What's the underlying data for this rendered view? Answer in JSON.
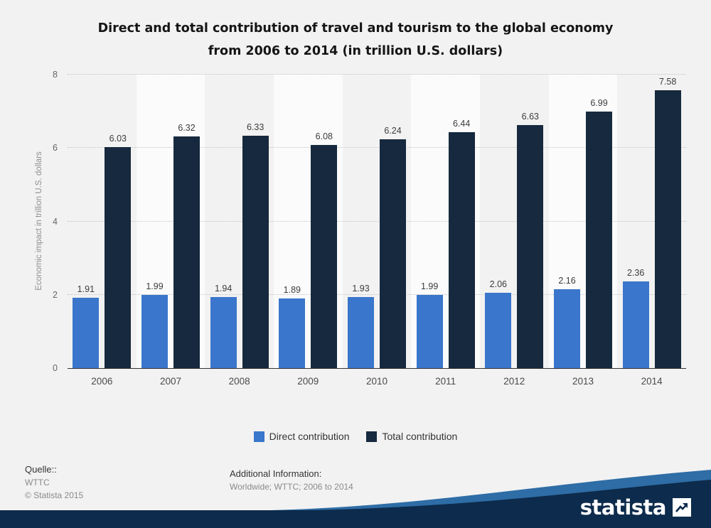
{
  "title": {
    "line1": "Direct and total contribution of travel and tourism to the global economy",
    "line2": "from 2006 to 2014 (in trillion U.S. dollars)"
  },
  "chart_data": {
    "type": "bar",
    "categories": [
      "2006",
      "2007",
      "2008",
      "2009",
      "2010",
      "2011",
      "2012",
      "2013",
      "2014"
    ],
    "series": [
      {
        "name": "Direct contribution",
        "color": "#3a76cb",
        "values": [
          1.91,
          1.99,
          1.94,
          1.89,
          1.93,
          1.99,
          2.06,
          2.16,
          2.36
        ]
      },
      {
        "name": "Total contribution",
        "color": "#16293e",
        "values": [
          6.03,
          6.32,
          6.33,
          6.08,
          6.24,
          6.44,
          6.63,
          6.99,
          7.58
        ]
      }
    ],
    "title": "Direct and total contribution of travel and tourism to the global economy from 2006 to 2014 (in trillion U.S. dollars)",
    "xlabel": "",
    "ylabel": "Economic impact in trillion U.S. dollars",
    "ylim": [
      0,
      8
    ],
    "yticks": [
      0,
      2,
      4,
      6,
      8
    ],
    "grid": "dotted-horizontal",
    "legend_position": "bottom-center",
    "background_stripes": "alternating vertical, white on light gray"
  },
  "footer": {
    "source_label": "Quelle::",
    "source": "WTTC",
    "copyright": "© Statista 2015",
    "additional_label": "Additional Information:",
    "additional_text": "Worldwide; WTTC; 2006 to 2014"
  },
  "branding": {
    "logo_text": "statista",
    "ribbon_dark": "#0d2b4c",
    "ribbon_light": "#2e6da6"
  }
}
